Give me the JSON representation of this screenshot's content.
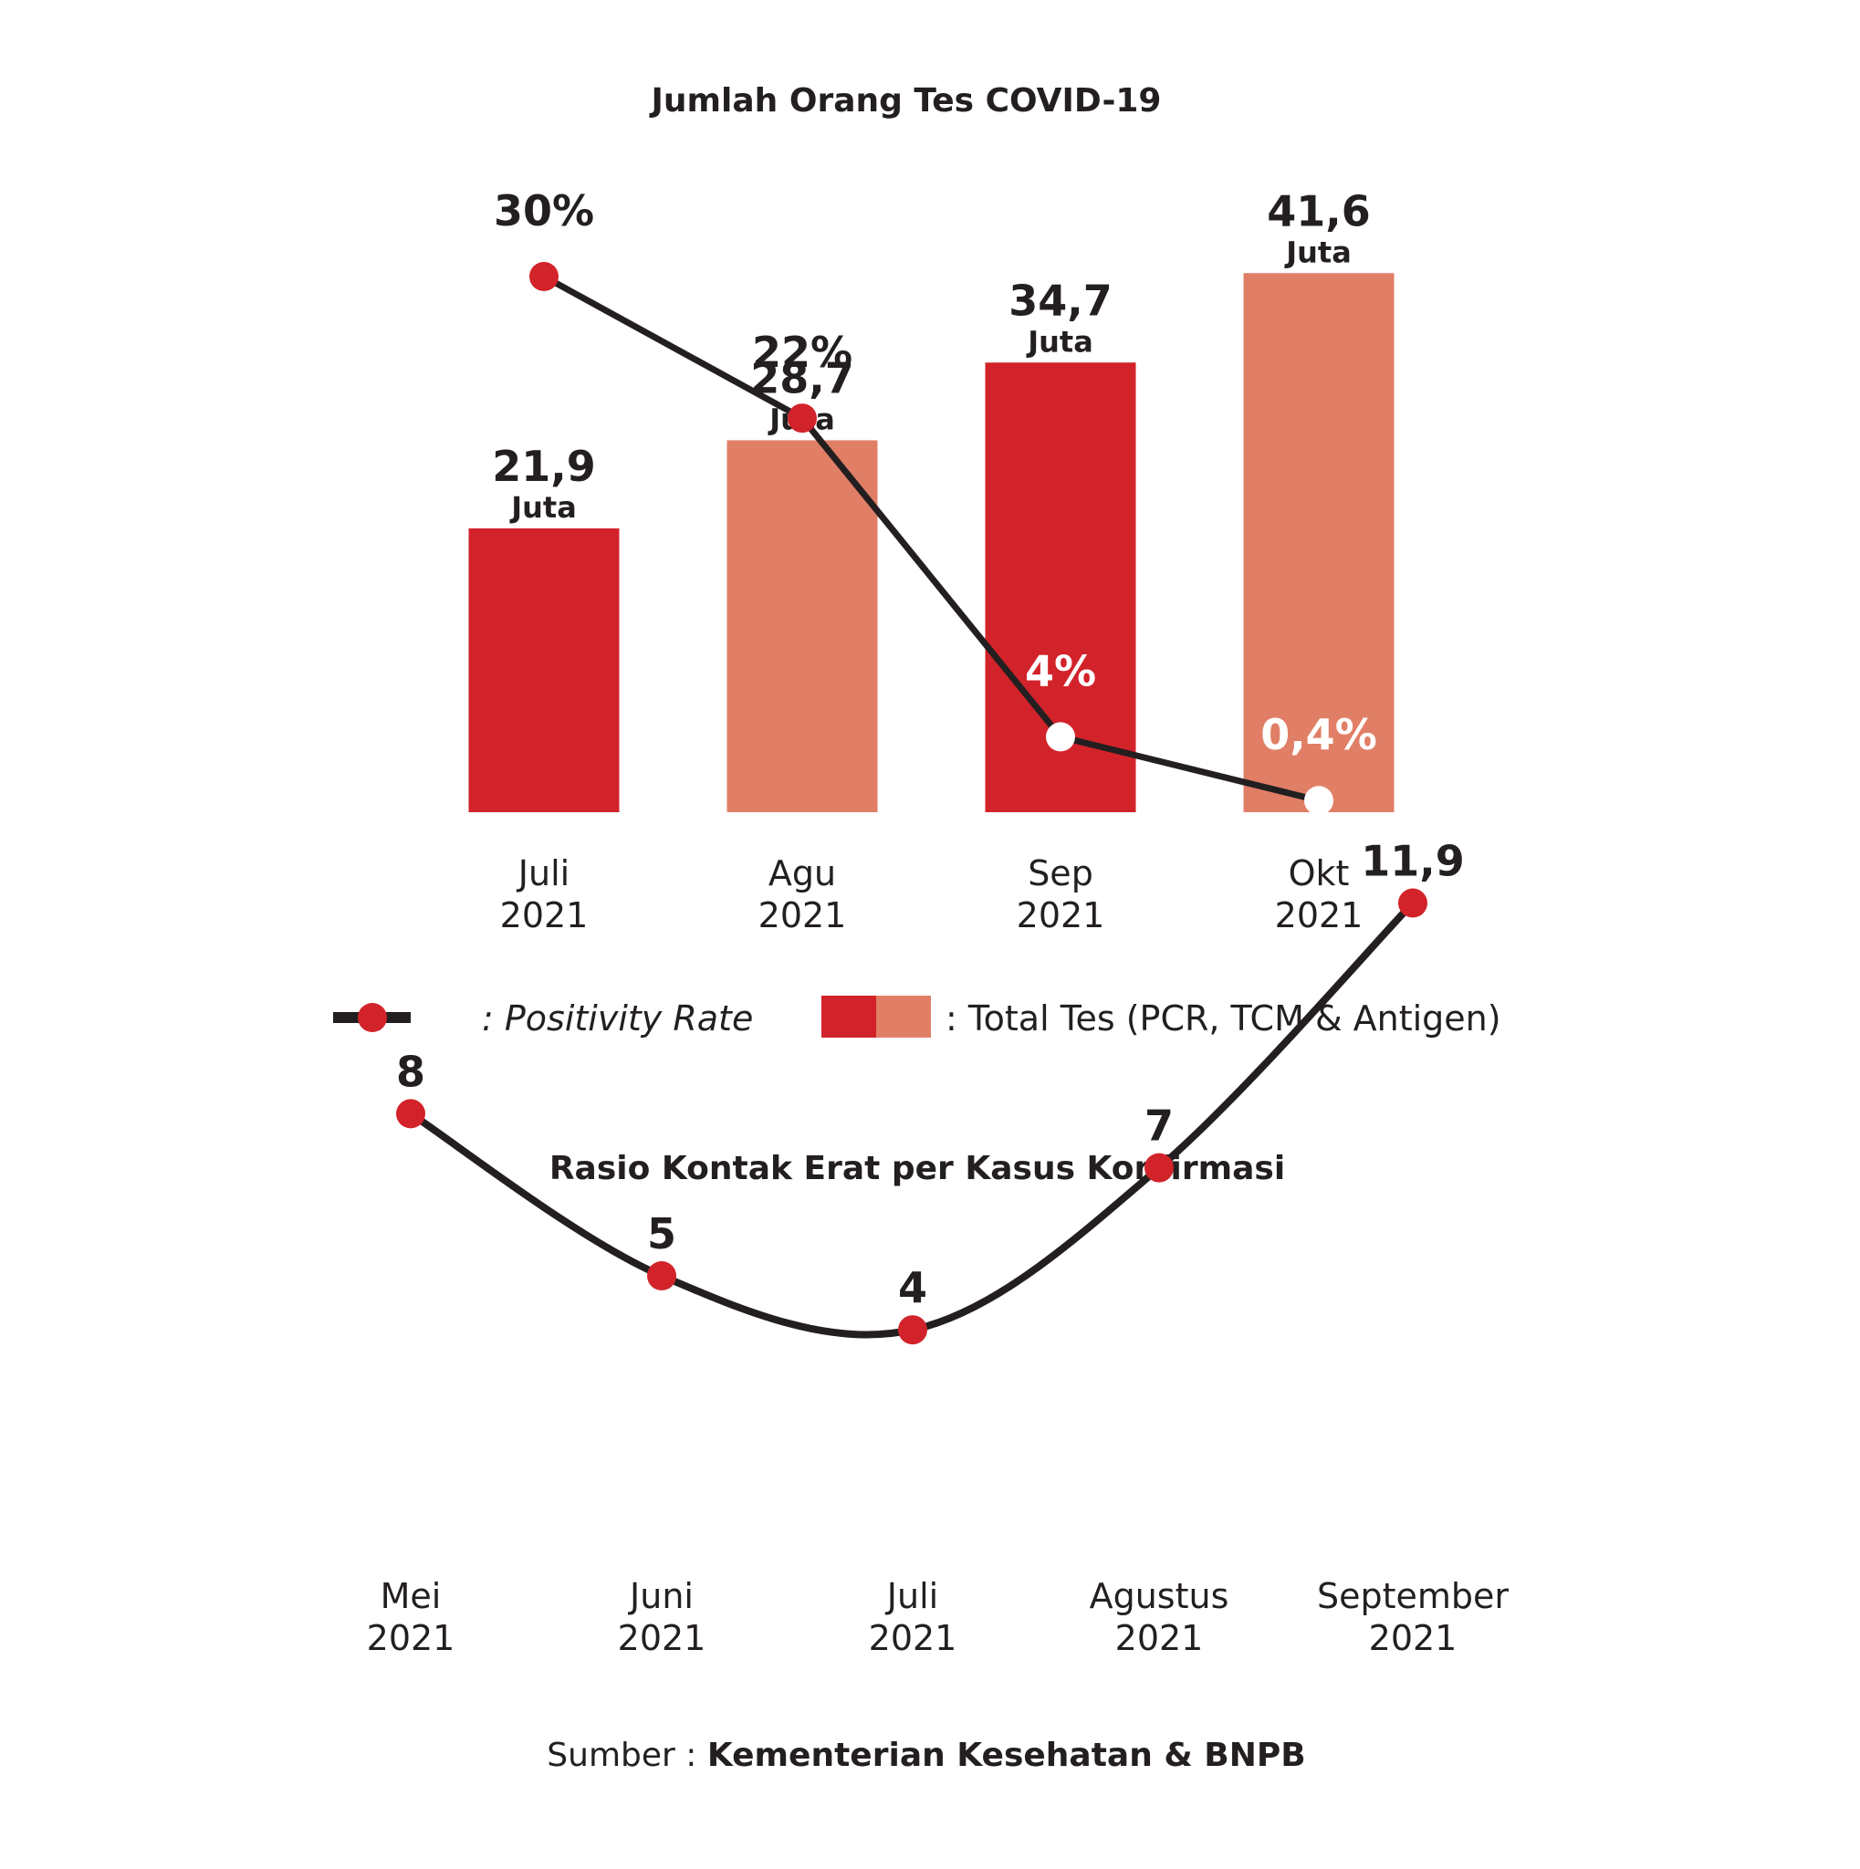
{
  "colors": {
    "dark_red": "#d2232a",
    "salmon": "#e07f66",
    "line": "#231f20",
    "text": "#231f20",
    "white_label": "#ffffff"
  },
  "chart_data": [
    {
      "type": "bar",
      "title": "Jumlah Orang Tes COVID-19",
      "categories": [
        "Juli 2021",
        "Agu 2021",
        "Sep 2021",
        "Okt 2021"
      ],
      "category_lines": [
        [
          "Juli",
          "2021"
        ],
        [
          "Agu",
          "2021"
        ],
        [
          "Sep",
          "2021"
        ],
        [
          "Okt",
          "2021"
        ]
      ],
      "series": [
        {
          "name": "Total Tes (PCR, TCM & Antigen)",
          "type": "bar",
          "values": [
            21.9,
            28.7,
            34.7,
            41.6
          ],
          "value_labels": [
            "21,9",
            "28,7",
            "34,7",
            "41,6"
          ],
          "unit_label": "Juta",
          "colors": [
            "#d2232a",
            "#e07f66",
            "#d2232a",
            "#e07f66"
          ]
        },
        {
          "name": "Positivity Rate",
          "type": "line",
          "values": [
            30,
            22,
            4,
            0.4
          ],
          "value_labels": [
            "30%",
            "22%",
            "4%",
            "0,4%"
          ]
        }
      ],
      "legend": {
        "placement": "bottom",
        "line_label": ": Positivity Rate",
        "bar_label": ": Total Tes (PCR, TCM & Antigen)"
      }
    },
    {
      "type": "line",
      "title": "Rasio Kontak Erat per Kasus Konfirmasi",
      "categories": [
        "Mei 2021",
        "Juni 2021",
        "Juli 2021",
        "Agustus 2021",
        "September 2021"
      ],
      "category_lines": [
        [
          "Mei",
          "2021"
        ],
        [
          "Juni",
          "2021"
        ],
        [
          "Juli",
          "2021"
        ],
        [
          "Agustus",
          "2021"
        ],
        [
          "September",
          "2021"
        ]
      ],
      "values": [
        8,
        5,
        4,
        7,
        11.9
      ],
      "value_labels": [
        "8",
        "5",
        "4",
        "7",
        "11,9"
      ]
    }
  ],
  "source": {
    "prefix": "Sumber : ",
    "text": "Kementerian Kesehatan & BNPB"
  }
}
